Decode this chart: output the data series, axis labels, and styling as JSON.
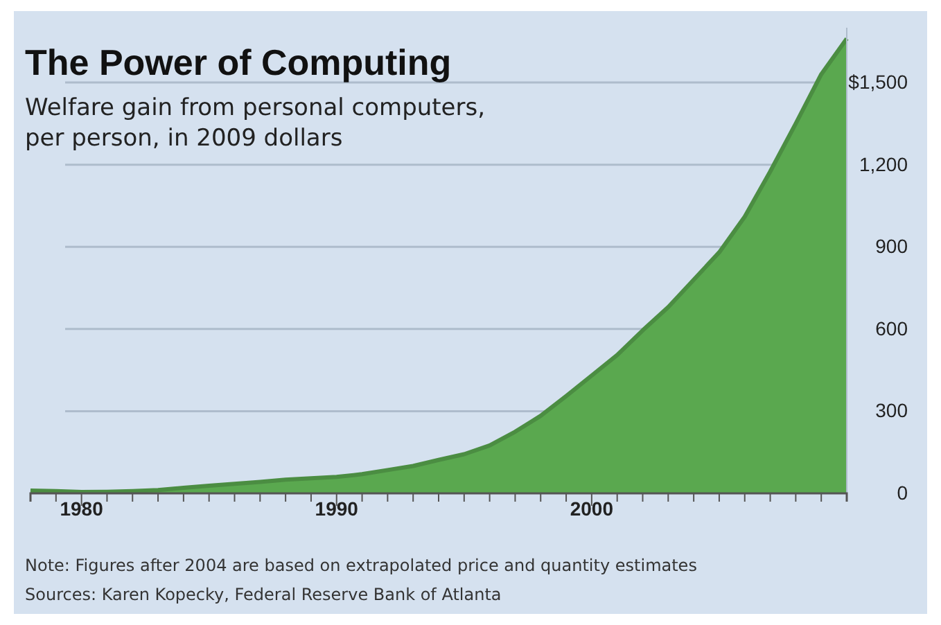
{
  "chart_data": {
    "type": "area",
    "title": "The Power of Computing",
    "subtitle": "Welfare gain from personal computers, per person, in 2009 dollars",
    "x": [
      1978,
      1979,
      1980,
      1981,
      1982,
      1983,
      1984,
      1985,
      1986,
      1987,
      1988,
      1989,
      1990,
      1991,
      1992,
      1993,
      1994,
      1995,
      1996,
      1997,
      1998,
      1999,
      2000,
      2001,
      2002,
      2003,
      2004,
      2005,
      2006,
      2007,
      2008,
      2009,
      2010
    ],
    "series": [
      {
        "color": "#5aa84f",
        "values": [
          10,
          8,
          5,
          6,
          8,
          12,
          20,
          28,
          35,
          42,
          50,
          55,
          60,
          70,
          85,
          100,
          122,
          143,
          175,
          225,
          283,
          355,
          430,
          505,
          595,
          680,
          780,
          880,
          1010,
          1175,
          1350,
          1530,
          1660
        ]
      }
    ],
    "xlim": [
      1978,
      2010
    ],
    "xticks": [
      {
        "value": 1978,
        "label": null
      },
      {
        "value": 1979,
        "label": null
      },
      {
        "value": 1980,
        "label": "1980"
      },
      {
        "value": 1981,
        "label": null
      },
      {
        "value": 1982,
        "label": null
      },
      {
        "value": 1983,
        "label": null
      },
      {
        "value": 1984,
        "label": null
      },
      {
        "value": 1985,
        "label": null
      },
      {
        "value": 1986,
        "label": null
      },
      {
        "value": 1987,
        "label": null
      },
      {
        "value": 1988,
        "label": null
      },
      {
        "value": 1989,
        "label": null
      },
      {
        "value": 1990,
        "label": "1990"
      },
      {
        "value": 1991,
        "label": null
      },
      {
        "value": 1992,
        "label": null
      },
      {
        "value": 1993,
        "label": null
      },
      {
        "value": 1994,
        "label": null
      },
      {
        "value": 1995,
        "label": null
      },
      {
        "value": 1996,
        "label": null
      },
      {
        "value": 1997,
        "label": null
      },
      {
        "value": 1998,
        "label": null
      },
      {
        "value": 1999,
        "label": null
      },
      {
        "value": 2000,
        "label": "2000"
      },
      {
        "value": 2001,
        "label": null
      },
      {
        "value": 2002,
        "label": null
      },
      {
        "value": 2003,
        "label": null
      },
      {
        "value": 2004,
        "label": null
      },
      {
        "value": 2005,
        "label": null
      },
      {
        "value": 2006,
        "label": null
      },
      {
        "value": 2007,
        "label": null
      },
      {
        "value": 2008,
        "label": null
      },
      {
        "value": 2009,
        "label": null
      },
      {
        "value": 2010,
        "label": null
      }
    ],
    "ylim": [
      0,
      1700
    ],
    "yticks": [
      0,
      300,
      600,
      900,
      "1,200",
      {
        "value": 1500,
        "label": "$1,500"
      }
    ],
    "grid": "y",
    "annotations": [
      "Note: Figures after 2004 are based on extrapolated price and quantity estimates",
      "Sources: Karen Kopecky, Federal Reserve Bank of Atlanta"
    ]
  }
}
